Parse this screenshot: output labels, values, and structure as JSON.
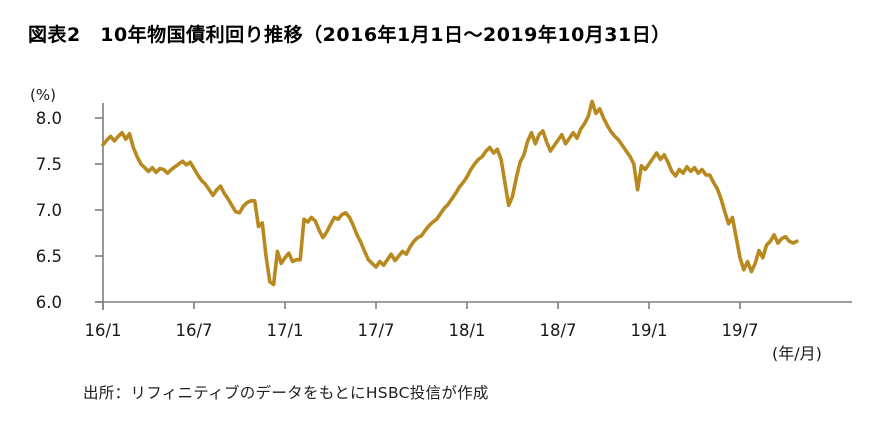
{
  "page": {
    "title": "図表2　10年物国債利回り推移（2016年1月1日～2019年10月31日）",
    "source_note": "出所：リフィニティブのデータをもとにHSBC投信が作成"
  },
  "chart_data": {
    "type": "line",
    "title": "10年物国債利回り推移（2016年1月1日～2019年10月31日）",
    "series_name": "10年物国債利回り",
    "y_unit_label": "(%)",
    "x_unit_label": "(年/月)",
    "ylim": [
      6.0,
      8.0
    ],
    "yticks": [
      8.0,
      7.5,
      7.0,
      6.5,
      6.0
    ],
    "xticks": [
      {
        "label": "16/1",
        "month": 0
      },
      {
        "label": "16/7",
        "month": 6
      },
      {
        "label": "17/1",
        "month": 12
      },
      {
        "label": "17/7",
        "month": 18
      },
      {
        "label": "18/1",
        "month": 24
      },
      {
        "label": "18/7",
        "month": 30
      },
      {
        "label": "19/1",
        "month": 36
      },
      {
        "label": "19/7",
        "month": 42
      }
    ],
    "x_start_month": 0,
    "x_step_months": 0.25,
    "x_axis_note": "values sampled weekly; month 0 = 2016/1, month 45.75 = 2019/10末",
    "grid": false,
    "legend": false,
    "line_color": "#B8891F",
    "axis_color": "#7F7F7F",
    "tick_label_color": "#1a1a1a",
    "values": [
      7.71,
      7.76,
      7.8,
      7.75,
      7.8,
      7.84,
      7.77,
      7.83,
      7.68,
      7.58,
      7.5,
      7.46,
      7.42,
      7.46,
      7.41,
      7.45,
      7.44,
      7.4,
      7.44,
      7.47,
      7.5,
      7.53,
      7.49,
      7.52,
      7.45,
      7.38,
      7.32,
      7.28,
      7.22,
      7.16,
      7.22,
      7.26,
      7.18,
      7.12,
      7.05,
      6.98,
      6.97,
      7.04,
      7.08,
      7.1,
      7.1,
      6.82,
      6.86,
      6.5,
      6.22,
      6.19,
      6.55,
      6.42,
      6.48,
      6.53,
      6.44,
      6.46,
      6.46,
      6.9,
      6.87,
      6.92,
      6.88,
      6.78,
      6.7,
      6.76,
      6.84,
      6.92,
      6.9,
      6.95,
      6.97,
      6.92,
      6.83,
      6.73,
      6.65,
      6.55,
      6.46,
      6.42,
      6.38,
      6.44,
      6.4,
      6.46,
      6.52,
      6.45,
      6.5,
      6.55,
      6.52,
      6.6,
      6.66,
      6.7,
      6.72,
      6.78,
      6.83,
      6.87,
      6.9,
      6.96,
      7.02,
      7.06,
      7.12,
      7.18,
      7.25,
      7.3,
      7.36,
      7.44,
      7.5,
      7.55,
      7.58,
      7.64,
      7.68,
      7.62,
      7.66,
      7.55,
      7.3,
      7.05,
      7.15,
      7.35,
      7.52,
      7.6,
      7.75,
      7.84,
      7.72,
      7.82,
      7.86,
      7.74,
      7.64,
      7.7,
      7.76,
      7.82,
      7.72,
      7.78,
      7.84,
      7.78,
      7.88,
      7.94,
      8.02,
      8.18,
      8.05,
      8.1,
      8.0,
      7.92,
      7.85,
      7.8,
      7.76,
      7.7,
      7.64,
      7.58,
      7.5,
      7.22,
      7.48,
      7.44,
      7.5,
      7.56,
      7.62,
      7.55,
      7.6,
      7.52,
      7.42,
      7.37,
      7.44,
      7.4,
      7.47,
      7.42,
      7.46,
      7.4,
      7.44,
      7.38,
      7.38,
      7.3,
      7.23,
      7.12,
      6.98,
      6.85,
      6.92,
      6.7,
      6.48,
      6.35,
      6.44,
      6.33,
      6.42,
      6.56,
      6.48,
      6.62,
      6.66,
      6.73,
      6.64,
      6.69,
      6.71,
      6.66,
      6.64,
      6.66
    ]
  }
}
